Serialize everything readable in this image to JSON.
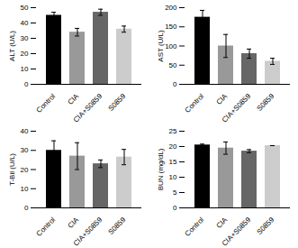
{
  "chart_data": [
    {
      "type": "bar",
      "y_label": "ALT (U/L)",
      "categories": [
        "Control",
        "CIA",
        "CIA+S0859",
        "S0859"
      ],
      "values": [
        45,
        34,
        47,
        36
      ],
      "errors": [
        2,
        2.5,
        2,
        2
      ],
      "colors": [
        "#000000",
        "#999999",
        "#666666",
        "#cccccc"
      ],
      "ylim": [
        0,
        50
      ],
      "yticks": [
        0,
        10,
        20,
        30,
        40,
        50
      ]
    },
    {
      "type": "bar",
      "y_label": "AST (U/L)",
      "categories": [
        "Control",
        "CIA",
        "CIA+S0859",
        "S0859"
      ],
      "values": [
        175,
        100,
        80,
        60
      ],
      "errors": [
        18,
        30,
        12,
        8
      ],
      "colors": [
        "#000000",
        "#999999",
        "#666666",
        "#cccccc"
      ],
      "ylim": [
        0,
        200
      ],
      "yticks": [
        0,
        50,
        100,
        150,
        200
      ]
    },
    {
      "type": "bar",
      "y_label": "T-Bil (U/L)",
      "categories": [
        "Control",
        "CIA",
        "CIA+S0859",
        "S0859"
      ],
      "values": [
        30,
        27,
        23,
        26.5
      ],
      "errors": [
        5,
        7,
        2,
        4
      ],
      "colors": [
        "#000000",
        "#999999",
        "#666666",
        "#cccccc"
      ],
      "ylim": [
        0,
        40
      ],
      "yticks": [
        0,
        10,
        20,
        30,
        40
      ]
    },
    {
      "type": "bar",
      "y_label": "BUN (mg/dL)",
      "categories": [
        "Control",
        "CIA",
        "CIA+S0859",
        "S0859"
      ],
      "values": [
        20.5,
        19.5,
        18.5,
        20.3
      ],
      "errors": [
        0.3,
        2,
        0.5,
        0
      ],
      "colors": [
        "#000000",
        "#999999",
        "#666666",
        "#cccccc"
      ],
      "ylim": [
        0,
        25
      ],
      "yticks": [
        0,
        5,
        10,
        15,
        20,
        25
      ]
    }
  ]
}
